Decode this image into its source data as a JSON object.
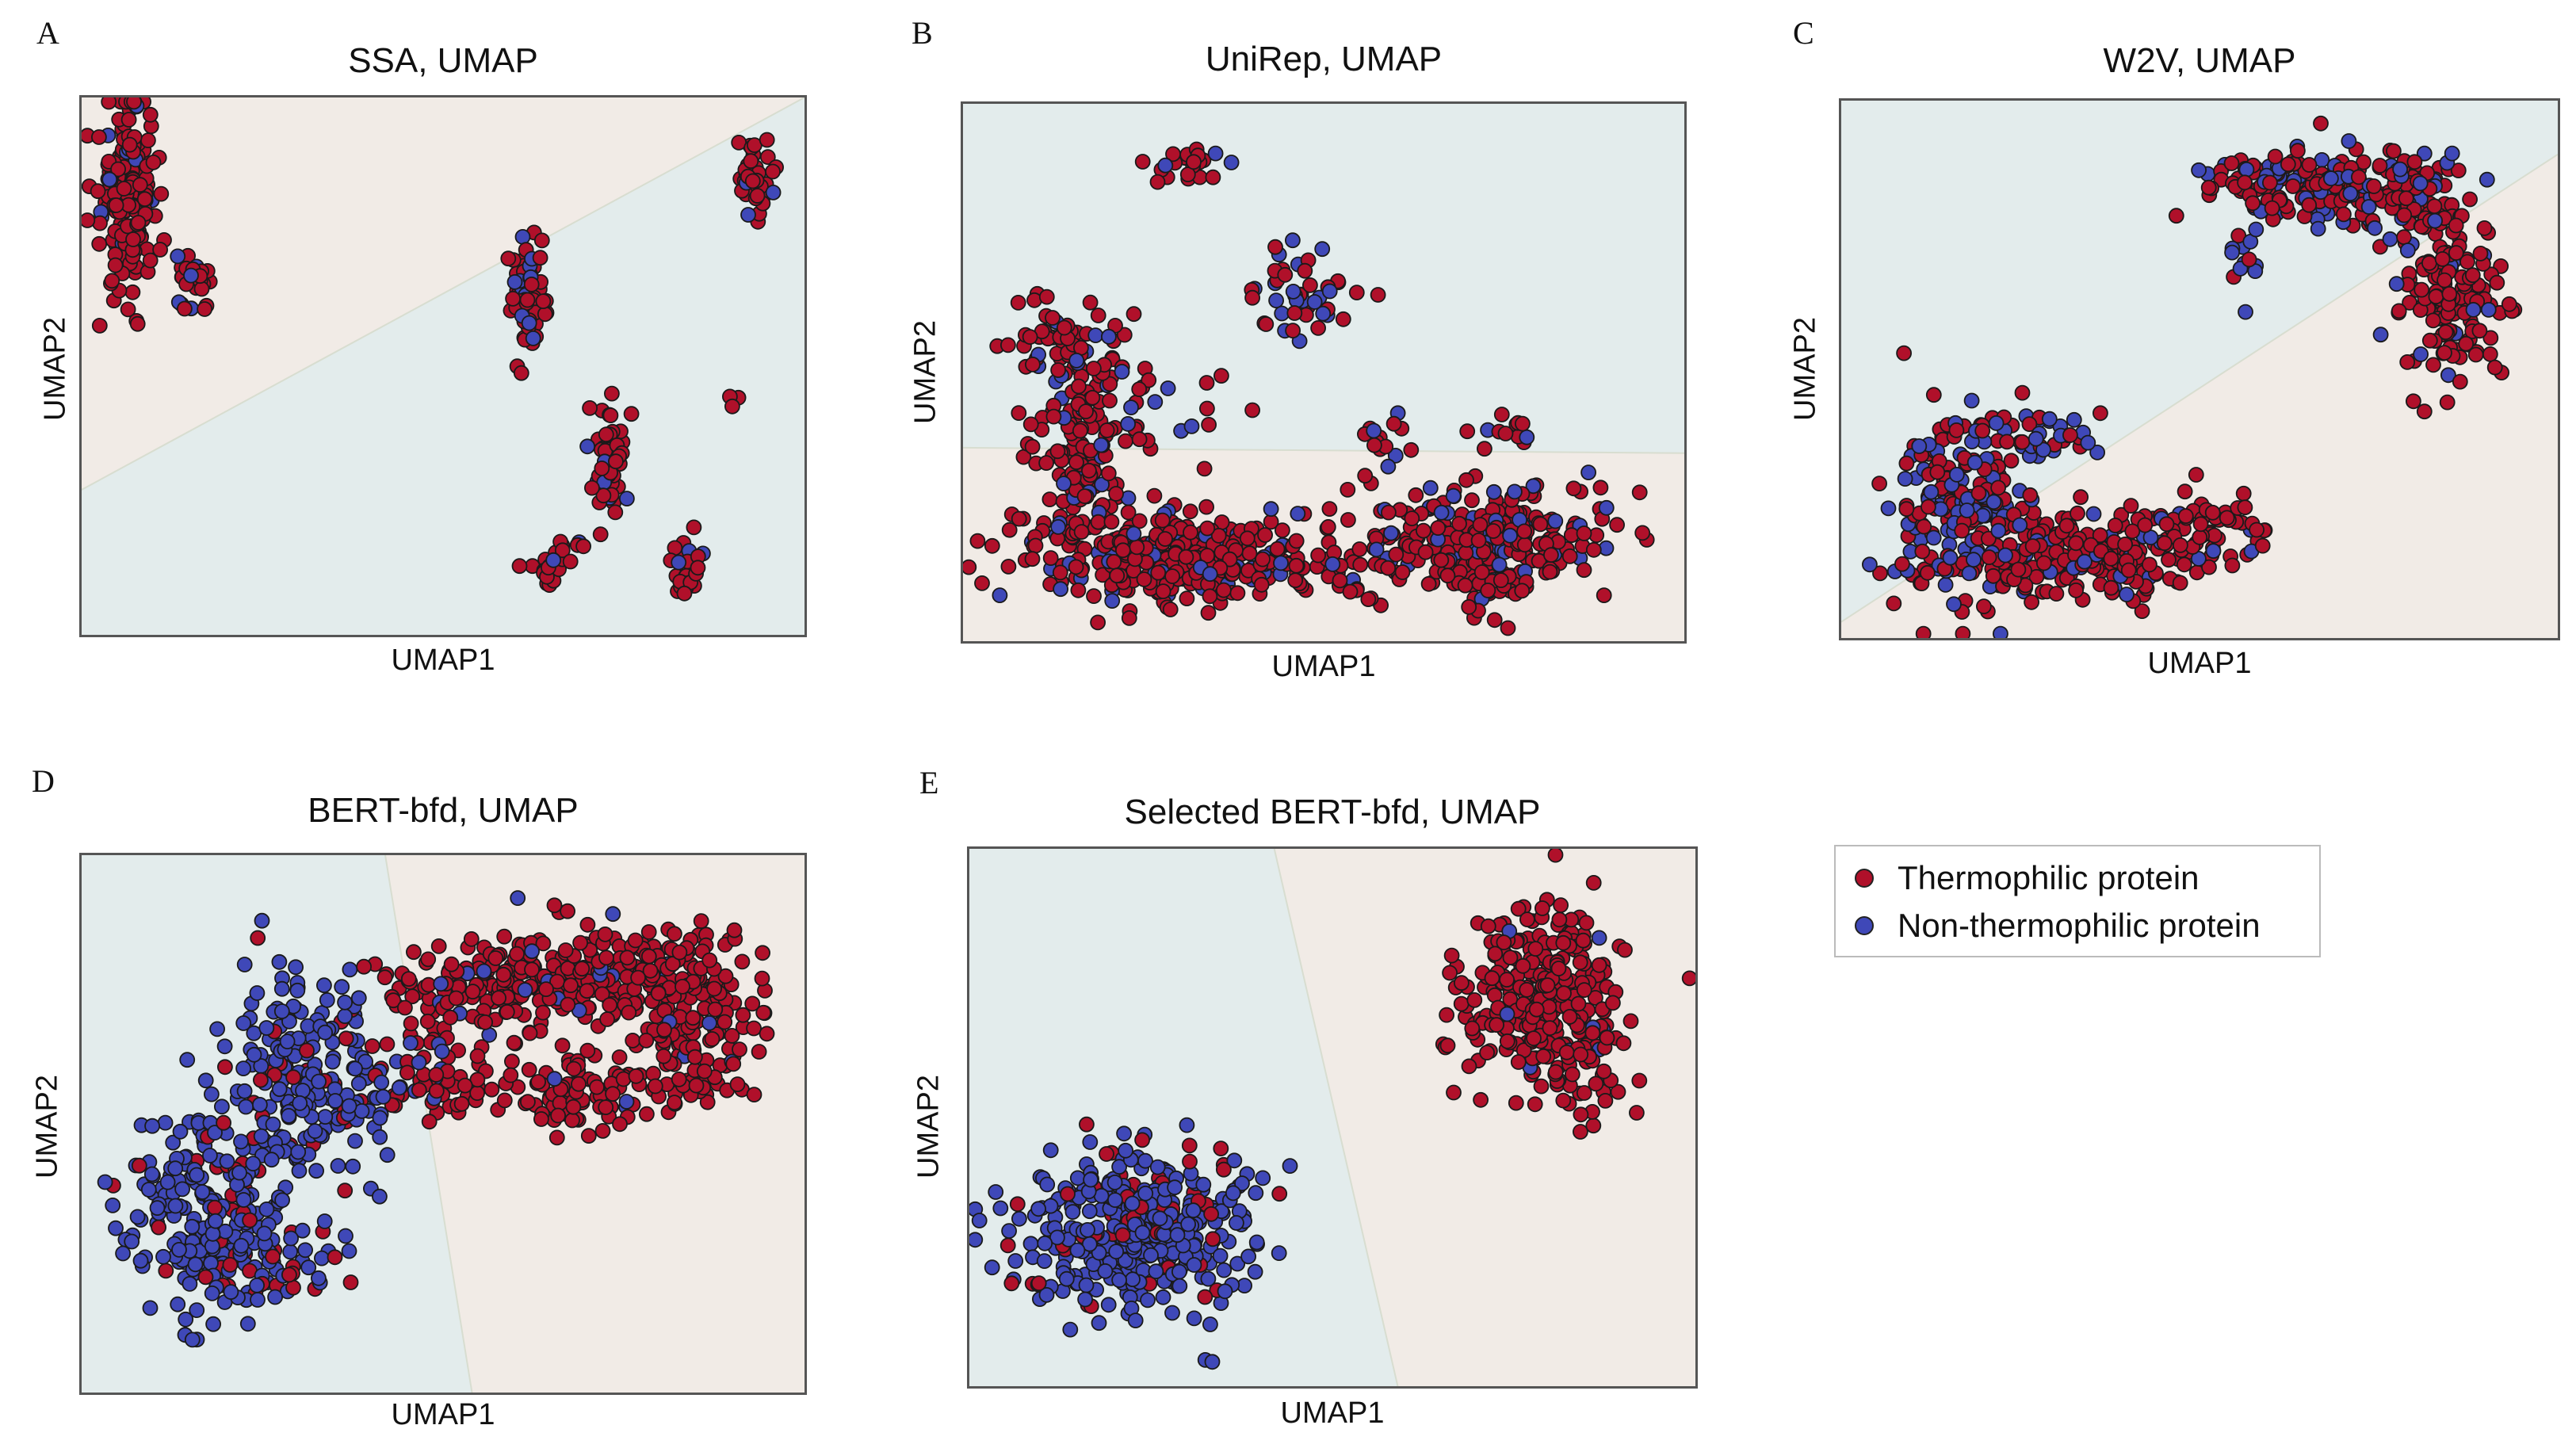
{
  "colors": {
    "thermophilic": "#b0102a",
    "non_thermophilic": "#3f48b8",
    "region_blue": "#e3ecec",
    "region_beige": "#f1ebe6",
    "marker_edge": "#1a1a1a"
  },
  "legend": {
    "items": [
      {
        "label": "Thermophilic protein",
        "color": "#b0102a"
      },
      {
        "label": "Non-thermophilic protein",
        "color": "#3f48b8"
      }
    ]
  },
  "chart_data": [
    {
      "letter": "A",
      "type": "scatter",
      "title": "SSA, UMAP",
      "xlabel": "UMAP1",
      "ylabel": "UMAP2",
      "xlim": [
        0,
        10
      ],
      "ylim": [
        0,
        10
      ],
      "boundary": [
        [
          0,
          2.7
        ],
        [
          10,
          10
        ]
      ],
      "region_above": "beige",
      "region_below": "blue",
      "clusters": [
        {
          "cx": 0.65,
          "cy": 8.1,
          "sx": 0.2,
          "sy": 0.85,
          "n": 170,
          "red_frac": 0.93
        },
        {
          "cx": 1.55,
          "cy": 6.5,
          "sx": 0.12,
          "sy": 0.25,
          "n": 24,
          "red_frac": 0.9
        },
        {
          "cx": 6.2,
          "cy": 6.3,
          "sx": 0.13,
          "sy": 0.55,
          "n": 70,
          "red_frac": 0.9
        },
        {
          "cx": 9.3,
          "cy": 8.6,
          "sx": 0.12,
          "sy": 0.35,
          "n": 40,
          "red_frac": 0.9
        },
        {
          "cx": 7.3,
          "cy": 3.2,
          "sx": 0.14,
          "sy": 0.55,
          "n": 50,
          "red_frac": 0.85
        },
        {
          "cx": 6.5,
          "cy": 1.2,
          "sx": 0.15,
          "sy": 0.25,
          "n": 22,
          "red_frac": 0.85
        },
        {
          "cx": 8.35,
          "cy": 1.3,
          "sx": 0.13,
          "sy": 0.35,
          "n": 28,
          "red_frac": 0.85
        },
        {
          "cx": 9.0,
          "cy": 4.4,
          "sx": 0.05,
          "sy": 0.05,
          "n": 3,
          "red_frac": 1.0
        },
        {
          "cx": 6.9,
          "cy": 1.7,
          "sx": 0.05,
          "sy": 0.05,
          "n": 3,
          "red_frac": 0.3
        }
      ]
    },
    {
      "letter": "B",
      "type": "scatter",
      "title": "UniRep, UMAP",
      "xlabel": "UMAP1",
      "ylabel": "UMAP2",
      "xlim": [
        0,
        10
      ],
      "ylim": [
        0,
        10
      ],
      "boundary": [
        [
          0,
          3.6
        ],
        [
          10,
          3.5
        ]
      ],
      "region_above": "blue",
      "region_below": "beige",
      "clusters": [
        {
          "cx": 3.2,
          "cy": 1.6,
          "sx": 1.1,
          "sy": 0.45,
          "n": 320,
          "red_frac": 0.85
        },
        {
          "cx": 7.3,
          "cy": 1.8,
          "sx": 0.8,
          "sy": 0.55,
          "n": 280,
          "red_frac": 0.82
        },
        {
          "cx": 1.6,
          "cy": 3.3,
          "sx": 0.35,
          "sy": 1.0,
          "n": 120,
          "red_frac": 0.85
        },
        {
          "cx": 1.5,
          "cy": 5.5,
          "sx": 0.45,
          "sy": 0.45,
          "n": 60,
          "red_frac": 0.85
        },
        {
          "cx": 3.1,
          "cy": 8.8,
          "sx": 0.3,
          "sy": 0.2,
          "n": 22,
          "red_frac": 0.9
        },
        {
          "cx": 4.7,
          "cy": 6.5,
          "sx": 0.45,
          "sy": 0.45,
          "n": 45,
          "red_frac": 0.5
        },
        {
          "cx": 5.9,
          "cy": 3.7,
          "sx": 0.2,
          "sy": 0.25,
          "n": 14,
          "red_frac": 0.6
        },
        {
          "cx": 7.6,
          "cy": 3.9,
          "sx": 0.25,
          "sy": 0.2,
          "n": 12,
          "red_frac": 0.6
        },
        {
          "cx": 2.3,
          "cy": 4.3,
          "sx": 0.7,
          "sy": 0.6,
          "n": 40,
          "red_frac": 0.8
        }
      ]
    },
    {
      "letter": "C",
      "type": "scatter",
      "title": "W2V, UMAP",
      "xlabel": "UMAP1",
      "ylabel": "UMAP2",
      "xlim": [
        0,
        10
      ],
      "ylim": [
        0,
        10
      ],
      "boundary": [
        [
          0,
          0.3
        ],
        [
          10,
          9.0
        ]
      ],
      "region_above": "blue",
      "region_below": "beige",
      "clusters": [
        {
          "cx": 1.7,
          "cy": 2.4,
          "sx": 0.55,
          "sy": 0.9,
          "n": 220,
          "red_frac": 0.6
        },
        {
          "cx": 3.5,
          "cy": 1.5,
          "sx": 0.9,
          "sy": 0.4,
          "n": 200,
          "red_frac": 0.9
        },
        {
          "cx": 5.1,
          "cy": 2.2,
          "sx": 0.55,
          "sy": 0.25,
          "n": 45,
          "red_frac": 0.85
        },
        {
          "cx": 2.9,
          "cy": 3.7,
          "sx": 0.45,
          "sy": 0.35,
          "n": 35,
          "red_frac": 0.4
        },
        {
          "cx": 6.3,
          "cy": 8.4,
          "sx": 0.6,
          "sy": 0.35,
          "n": 130,
          "red_frac": 0.72
        },
        {
          "cx": 7.8,
          "cy": 8.2,
          "sx": 0.55,
          "sy": 0.4,
          "n": 120,
          "red_frac": 0.72
        },
        {
          "cx": 8.5,
          "cy": 6.3,
          "sx": 0.35,
          "sy": 0.8,
          "n": 150,
          "red_frac": 0.88
        },
        {
          "cx": 5.7,
          "cy": 7.0,
          "sx": 0.15,
          "sy": 0.25,
          "n": 12,
          "red_frac": 0.5
        }
      ]
    },
    {
      "letter": "D",
      "type": "scatter",
      "title": "BERT-bfd, UMAP",
      "xlabel": "UMAP1",
      "ylabel": "UMAP2",
      "xlim": [
        0,
        10
      ],
      "ylim": [
        0,
        10
      ],
      "boundary": [
        [
          4.2,
          10
        ],
        [
          5.4,
          0
        ]
      ],
      "region_left": "blue",
      "region_right": "beige",
      "clusters": [
        {
          "cx": 1.9,
          "cy": 3.4,
          "sx": 0.65,
          "sy": 0.9,
          "n": 260,
          "red_frac": 0.12
        },
        {
          "cx": 3.1,
          "cy": 6.0,
          "sx": 0.65,
          "sy": 1.0,
          "n": 200,
          "red_frac": 0.15
        },
        {
          "cx": 2.6,
          "cy": 2.3,
          "sx": 0.45,
          "sy": 0.3,
          "n": 40,
          "red_frac": 0.55
        },
        {
          "cx": 5.8,
          "cy": 7.6,
          "sx": 0.8,
          "sy": 0.45,
          "n": 150,
          "red_frac": 0.9
        },
        {
          "cx": 7.7,
          "cy": 7.7,
          "sx": 0.8,
          "sy": 0.5,
          "n": 220,
          "red_frac": 0.95
        },
        {
          "cx": 8.5,
          "cy": 6.2,
          "sx": 0.45,
          "sy": 0.5,
          "n": 80,
          "red_frac": 0.95
        },
        {
          "cx": 6.9,
          "cy": 5.6,
          "sx": 0.6,
          "sy": 0.45,
          "n": 90,
          "red_frac": 0.95
        },
        {
          "cx": 4.8,
          "cy": 5.9,
          "sx": 0.45,
          "sy": 0.45,
          "n": 60,
          "red_frac": 0.85
        }
      ]
    },
    {
      "letter": "E",
      "type": "scatter",
      "title": "Selected BERT-bfd, UMAP",
      "xlabel": "UMAP1",
      "ylabel": "UMAP2",
      "xlim": [
        0,
        10
      ],
      "ylim": [
        0,
        10
      ],
      "boundary": [
        [
          4.2,
          10
        ],
        [
          5.9,
          0
        ]
      ],
      "region_left": "blue",
      "region_right": "beige",
      "clusters": [
        {
          "cx": 2.3,
          "cy": 3.0,
          "sx": 0.8,
          "sy": 0.75,
          "n": 420,
          "red_frac": 0.15
        },
        {
          "cx": 7.8,
          "cy": 7.2,
          "sx": 0.55,
          "sy": 0.8,
          "n": 300,
          "red_frac": 0.97
        },
        {
          "cx": 8.5,
          "cy": 5.8,
          "sx": 0.3,
          "sy": 0.5,
          "n": 40,
          "red_frac": 0.95
        }
      ]
    }
  ]
}
